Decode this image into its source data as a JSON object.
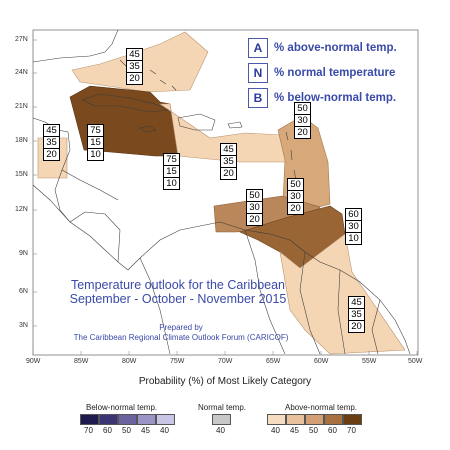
{
  "legend": {
    "above": {
      "key": "A",
      "text": "% above-normal temp."
    },
    "normal": {
      "key": "N",
      "text": "% normal temperature"
    },
    "below": {
      "key": "B",
      "text": "% below-normal temp."
    }
  },
  "title": {
    "line1": "Temperature outlook for the Caribbean",
    "line2": "September - October - November 2015"
  },
  "prepared": {
    "line1": "Prepared by",
    "line2": "The Caribbean Regional Climate Outlook Forum (CARICOF)"
  },
  "axes": {
    "lat": [
      "27N",
      "24N",
      "21N",
      "18N",
      "15N",
      "12N",
      "9N",
      "6N",
      "3N"
    ],
    "lon": [
      "90W",
      "85W",
      "80W",
      "75W",
      "70W",
      "65W",
      "60W",
      "55W",
      "50W"
    ]
  },
  "regions": [
    {
      "name": "bahamas",
      "values": [
        "45",
        "35",
        "20"
      ]
    },
    {
      "name": "central-america-north",
      "values": [
        "45",
        "35",
        "20"
      ]
    },
    {
      "name": "cuba",
      "values": [
        "75",
        "15",
        "10"
      ]
    },
    {
      "name": "jamaica",
      "values": [
        "75",
        "15",
        "10"
      ]
    },
    {
      "name": "hispaniola",
      "values": [
        "45",
        "35",
        "20"
      ]
    },
    {
      "name": "leeward-islands",
      "values": [
        "50",
        "30",
        "20"
      ]
    },
    {
      "name": "windward-islands",
      "values": [
        "50",
        "30",
        "20"
      ]
    },
    {
      "name": "abc-islands",
      "values": [
        "50",
        "30",
        "20"
      ]
    },
    {
      "name": "trinidad-guyana",
      "values": [
        "60",
        "30",
        "10"
      ]
    },
    {
      "name": "suriname-guiana",
      "values": [
        "45",
        "35",
        "20"
      ]
    }
  ],
  "scale": {
    "title": "Probability (%) of Most Likely Category",
    "below_label": "Below-normal temp.",
    "normal_label": "Normal temp.",
    "above_label": "Above-normal temp.",
    "below_ticks": [
      "70",
      "60",
      "50",
      "45",
      "40"
    ],
    "normal_ticks": [
      "40"
    ],
    "above_ticks": [
      "40",
      "45",
      "50",
      "60",
      "70"
    ],
    "below_colors": [
      "#1f1a4d",
      "#3b3575",
      "#6a63a0",
      "#9b95c7",
      "#c9c5e6"
    ],
    "normal_colors": [
      "#c8c8c8"
    ],
    "above_colors": [
      "#f6dcc0",
      "#e8c19d",
      "#d2a074",
      "#a8703e",
      "#6b3d12"
    ]
  }
}
